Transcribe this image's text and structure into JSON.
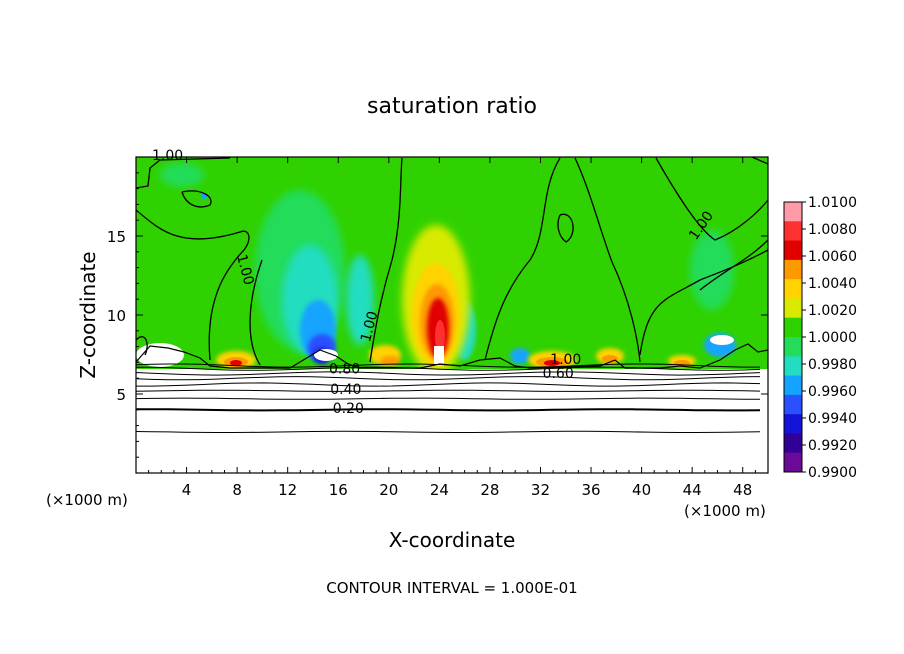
{
  "chart_data": {
    "type": "heatmap",
    "title": "saturation ratio",
    "xlabel": "X-coordinate",
    "ylabel": "Z-coordinate",
    "x_unit_left": "(×1000 m)",
    "x_unit_right": "(×1000 m)",
    "xlim": [
      0,
      50
    ],
    "ylim": [
      0,
      20
    ],
    "x_ticks": [
      "4",
      "8",
      "12",
      "16",
      "20",
      "24",
      "28",
      "32",
      "36",
      "40",
      "44",
      "48"
    ],
    "y_ticks": [
      "5",
      "10",
      "15"
    ],
    "colorbar_labels": [
      "1.0100",
      "1.0080",
      "1.0060",
      "1.0040",
      "1.0020",
      "1.0000",
      "0.9980",
      "0.9960",
      "0.9940",
      "0.9920",
      "0.9900"
    ],
    "colorbar_colors": [
      "#ff9aa8",
      "#ff3030",
      "#e00000",
      "#ff9900",
      "#ffd200",
      "#d8ea00",
      "#2fd200",
      "#22dc5a",
      "#22ddc0",
      "#14a4ff",
      "#2a50ff",
      "#1414d8",
      "#320096",
      "#6a0a96"
    ],
    "contour_labels": [
      {
        "text": "1.00",
        "x": 2.5,
        "y": 19.8
      },
      {
        "text": "1.00",
        "x": 8.3,
        "y": 12.8
      },
      {
        "text": "1.00",
        "x": 18.8,
        "y": 9.2
      },
      {
        "text": "1.00",
        "x": 45.0,
        "y": 15.5
      },
      {
        "text": "1.00",
        "x": 34.0,
        "y": 6.9
      },
      {
        "text": "0.80",
        "x": 16.5,
        "y": 6.3
      },
      {
        "text": "0.60",
        "x": 33.4,
        "y": 6.0
      },
      {
        "text": "0.40",
        "x": 16.6,
        "y": 5.0
      },
      {
        "text": "0.20",
        "x": 16.8,
        "y": 3.8
      }
    ],
    "surface_height": 6.8,
    "isoline_levels_below_surface": [
      6.8,
      6.6,
      6.3,
      6.0,
      5.6,
      5.2,
      4.7,
      4.0,
      2.6
    ]
  },
  "footer": {
    "contour_interval": "CONTOUR INTERVAL = 1.000E-01"
  }
}
